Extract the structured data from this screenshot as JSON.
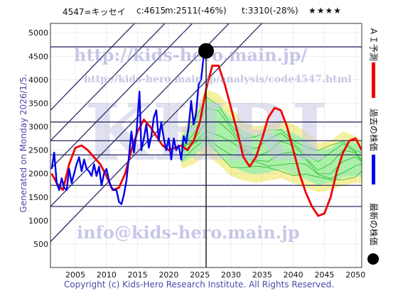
{
  "header": {
    "code": "4547=キッセイ",
    "current": "c:4615",
    "minimum": "m:2511(-46%)",
    "target": "t:3310(-28%)",
    "rating": "★★★★"
  },
  "side_label": "Generated on Monday 2026/1/5.",
  "footer": "Copyright (c) Kids-Hero Research Institute. All Rights Reserved.",
  "watermarks": {
    "url_main": "http://kids-hero.main.jp/",
    "url_analysis": "http://kids-hero.main.jp/analysis/code4547.html",
    "email": "info@kids-hero.main.jp",
    "logo": "KHRI"
  },
  "legend": {
    "forecast": "ＡＩ予測",
    "past": "過去の株価",
    "latest": "最新の株価",
    "forecast_color": "#ee0000",
    "past_color": "#0000ee",
    "latest_color": "#000000"
  },
  "colors": {
    "band_fill": "#f5f0a0",
    "green_lines": "#22bb22",
    "green_fill": "#aaf0aa",
    "grid": "#999999",
    "trend": "#2a2a66",
    "label_blue": "#4a4aa8"
  },
  "chart_data": {
    "type": "line",
    "xlim": [
      2001,
      2051
    ],
    "ylim": [
      0,
      5200
    ],
    "x_ticks": [
      2005,
      2010,
      2015,
      2020,
      2025,
      2030,
      2035,
      2040,
      2045,
      2050
    ],
    "y_ticks": [
      500,
      1000,
      1500,
      2000,
      2500,
      3000,
      3500,
      4000,
      4500,
      5000
    ],
    "horizontal_levels": [
      4700,
      3100,
      2700,
      2400,
      1750,
      1300
    ],
    "marker_year": 2026.0,
    "latest_point": {
      "x": 2026.0,
      "y": 4615
    },
    "trend_lines": [
      {
        "x1": 2001,
        "y1": 550,
        "x2": 2051,
        "y2": 7400
      },
      {
        "x1": 2001,
        "y1": 1300,
        "x2": 2051,
        "y2": 8100
      },
      {
        "x1": 2001,
        "y1": 2100,
        "x2": 2051,
        "y2": 8900
      },
      {
        "x1": 2001,
        "y1": 2700,
        "x2": 2051,
        "y2": 9500
      },
      {
        "x1": 2001,
        "y1": 3350,
        "x2": 2051,
        "y2": 10200
      }
    ],
    "series": [
      {
        "name": "過去の株価",
        "color": "#0000ee",
        "x": [
          2001.2,
          2001.6,
          2002.0,
          2002.4,
          2002.8,
          2003.2,
          2003.6,
          2004.0,
          2004.4,
          2004.8,
          2005.2,
          2005.6,
          2006.0,
          2006.4,
          2006.8,
          2007.2,
          2007.6,
          2008.0,
          2008.4,
          2008.8,
          2009.2,
          2009.6,
          2010.0,
          2010.4,
          2010.8,
          2011.2,
          2011.6,
          2012.0,
          2012.4,
          2012.8,
          2013.2,
          2013.6,
          2014.0,
          2014.4,
          2014.8,
          2015.0,
          2015.3,
          2015.6,
          2016.0,
          2016.4,
          2016.8,
          2017.2,
          2017.6,
          2018.0,
          2018.4,
          2018.8,
          2019.2,
          2019.6,
          2020.0,
          2020.4,
          2020.8,
          2021.2,
          2021.6,
          2022.0,
          2022.4,
          2022.8,
          2023.2,
          2023.6,
          2024.0,
          2024.4,
          2024.8,
          2025.2,
          2025.6,
          2025.9
        ],
        "y": [
          2100,
          2450,
          1800,
          1650,
          1900,
          1700,
          1650,
          2100,
          1800,
          2000,
          2200,
          2350,
          2050,
          2300,
          2100,
          2050,
          1950,
          2200,
          1950,
          2150,
          1750,
          2000,
          2100,
          1850,
          1700,
          1650,
          1650,
          1400,
          1350,
          1550,
          1850,
          2350,
          2900,
          2450,
          2850,
          3200,
          3750,
          2500,
          2750,
          3050,
          2550,
          2800,
          3200,
          3350,
          2700,
          3100,
          2750,
          2500,
          2750,
          2300,
          2750,
          2500,
          2600,
          2300,
          2800,
          2650,
          3000,
          3550,
          3050,
          3300,
          3900,
          4000,
          4500,
          4615
        ]
      },
      {
        "name": "ＡＩ予測",
        "color": "#ee0000",
        "x": [
          2001.2,
          2002.0,
          2003.0,
          2004.0,
          2005.0,
          2006.0,
          2007.0,
          2008.0,
          2009.0,
          2010.0,
          2011.0,
          2012.0,
          2013.0,
          2014.0,
          2015.0,
          2016.0,
          2017.0,
          2018.0,
          2019.0,
          2020.0,
          2021.0,
          2022.0,
          2023.0,
          2024.0,
          2025.0,
          2026.0,
          2027.0,
          2028.0,
          2029.0,
          2030.0,
          2031.0,
          2032.0,
          2033.0,
          2034.0,
          2035.0,
          2036.0,
          2037.0,
          2038.0,
          2039.0,
          2040.0,
          2041.0,
          2042.0,
          2043.0,
          2044.0,
          2045.0,
          2046.0,
          2047.0,
          2048.0,
          2049.0,
          2050.0,
          2051.0
        ],
        "y": [
          2000,
          1800,
          1650,
          2200,
          2550,
          2600,
          2500,
          2350,
          2200,
          1950,
          1650,
          1700,
          2000,
          2500,
          2900,
          3150,
          3000,
          2800,
          2600,
          2500,
          2550,
          2600,
          2500,
          2700,
          3100,
          3800,
          4300,
          4300,
          3900,
          3400,
          2900,
          2350,
          2150,
          2350,
          2750,
          3200,
          3400,
          3350,
          3000,
          2500,
          2000,
          1600,
          1300,
          1100,
          1150,
          1500,
          2050,
          2450,
          2700,
          2750,
          2500
        ]
      }
    ],
    "forecast_band": {
      "x": [
        2022,
        2024,
        2026,
        2028,
        2030,
        2032,
        2034,
        2036,
        2038,
        2040,
        2042,
        2044,
        2046,
        2048,
        2050,
        2051
      ],
      "upper": [
        2900,
        3300,
        3800,
        3700,
        3400,
        3100,
        3000,
        3050,
        3150,
        3050,
        2900,
        2650,
        2700,
        2900,
        2800,
        2700
      ],
      "lower": [
        2100,
        2200,
        2400,
        2200,
        1950,
        1850,
        1800,
        1850,
        1900,
        1800,
        1700,
        1600,
        1650,
        1750,
        1800,
        1800
      ]
    }
  }
}
